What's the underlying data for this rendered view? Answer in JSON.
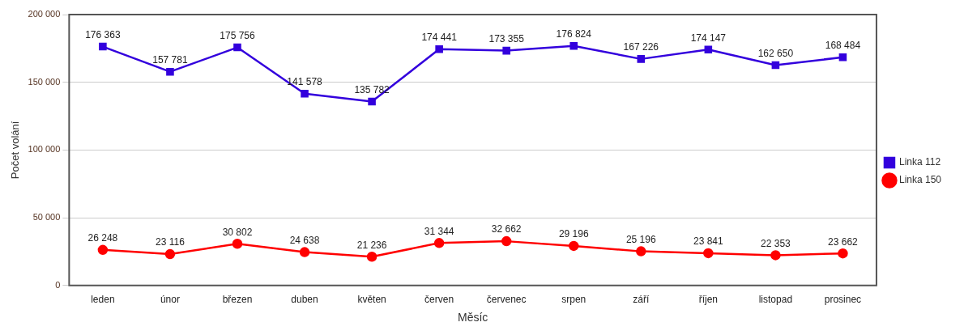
{
  "chart_data": {
    "type": "line",
    "xlabel": "Měsíc",
    "ylabel": "Počet volání",
    "categories": [
      "leden",
      "únor",
      "březen",
      "duben",
      "květen",
      "červen",
      "červenec",
      "srpen",
      "září",
      "říjen",
      "listopad",
      "prosinec"
    ],
    "series": [
      {
        "name": "Linka 112",
        "color": "#3300dd",
        "marker": "square",
        "values": [
          176363,
          157781,
          175756,
          141578,
          135782,
          174441,
          173355,
          176824,
          167226,
          174147,
          162650,
          168484
        ],
        "value_labels": [
          "176 363",
          "157 781",
          "175 756",
          "141 578",
          "135 782",
          "174 441",
          "173 355",
          "176 824",
          "167 226",
          "174 147",
          "162 650",
          "168 484"
        ]
      },
      {
        "name": "Linka 150",
        "color": "#ff0000",
        "marker": "circle",
        "values": [
          26248,
          23116,
          30802,
          24638,
          21236,
          31344,
          32662,
          29196,
          25196,
          23841,
          22353,
          23662
        ],
        "value_labels": [
          "26 248",
          "23 116",
          "30 802",
          "24 638",
          "21 236",
          "31 344",
          "32 662",
          "29 196",
          "25 196",
          "23 841",
          "22 353",
          "23 662"
        ]
      }
    ],
    "ylim": [
      0,
      200000
    ],
    "yticks": [
      {
        "value": 0,
        "label": "0"
      },
      {
        "value": 50000,
        "label": "50 000"
      },
      {
        "value": 100000,
        "label": "100 000"
      },
      {
        "value": 150000,
        "label": "150 000"
      },
      {
        "value": 200000,
        "label": "200 000"
      }
    ],
    "grid": "y",
    "legend": "right"
  }
}
